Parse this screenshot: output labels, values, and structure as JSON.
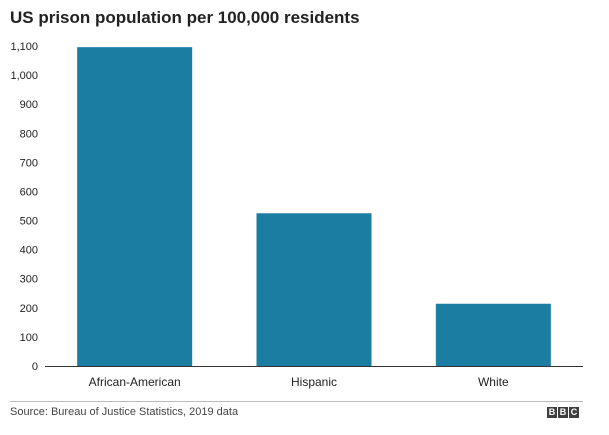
{
  "brand": {
    "bar_color": "#1a7da1",
    "logo_letters": [
      "B",
      "B",
      "C"
    ]
  },
  "chart_data": {
    "type": "bar",
    "title": "US prison population per 100,000 residents",
    "categories": [
      "African-American",
      "Hispanic",
      "White"
    ],
    "values": [
      1096,
      525,
      214
    ],
    "ylim": [
      0,
      1100
    ],
    "yticks": [
      0,
      100,
      200,
      300,
      400,
      500,
      600,
      700,
      800,
      900,
      1000,
      1100
    ],
    "ytick_labels": [
      "0",
      "100",
      "200",
      "300",
      "400",
      "500",
      "600",
      "700",
      "800",
      "900",
      "1,000",
      "1,100"
    ],
    "xlabel": "",
    "ylabel": "",
    "grid": false
  },
  "footer": {
    "source": "Source: Bureau of Justice Statistics, 2019 data"
  }
}
